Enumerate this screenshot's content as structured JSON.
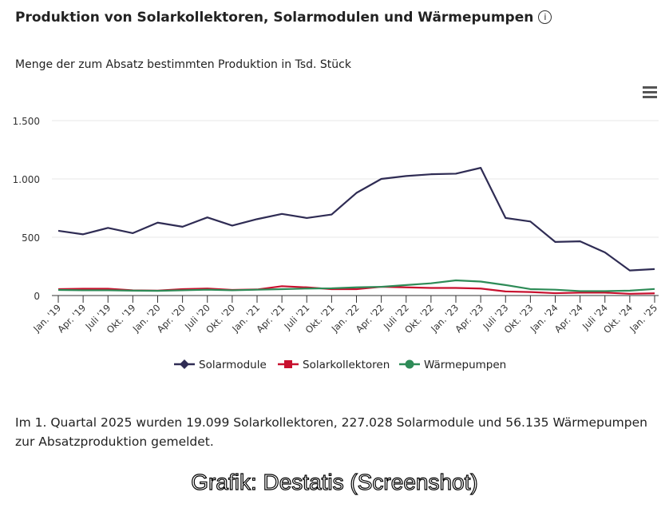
{
  "title": "Produktion von Solarkollektoren, Solarmodulen und Wärmepumpen",
  "info_icon": "info-icon",
  "menu_icon": "hamburger-menu-icon",
  "note": "Im 1. Quartal 2025 wurden 19.099 Solarkollektoren, 227.028 Solarmodule und 56.135 Wärmepumpen zur Absatzproduktion gemeldet.",
  "credit": "Grafik: Destatis (Screenshot)",
  "chart_data": {
    "type": "line",
    "subtitle": "Menge der zum Absatz bestimmten Produktion in Tsd. Stück",
    "categories": [
      "Jan. '19",
      "Apr. '19",
      "Juli '19",
      "Okt. '19",
      "Jan. '20",
      "Apr. '20",
      "Juli '20",
      "Okt. '20",
      "Jan. '21",
      "Apr. '21",
      "Juli '21",
      "Okt. '21",
      "Jan. '22",
      "Apr. '22",
      "Juli '22",
      "Okt. '22",
      "Jan. '23",
      "Apr. '23",
      "Juli '23",
      "Okt. '23",
      "Jan. '24",
      "Apr. '24",
      "Juli '24",
      "Okt. '24",
      "Jan. '25"
    ],
    "ylim": [
      0,
      1500
    ],
    "yticks": [
      0,
      500,
      1000,
      1500
    ],
    "ytick_labels": [
      "0",
      "500",
      "1.000",
      "1.500"
    ],
    "grid": true,
    "legend": "bottom",
    "series": [
      {
        "name": "Solarmodule",
        "color": "#2f2c54",
        "marker": "diamond",
        "values": [
          555,
          525,
          580,
          535,
          625,
          590,
          670,
          600,
          655,
          700,
          665,
          695,
          880,
          1000,
          1025,
          1040,
          1045,
          1095,
          665,
          635,
          460,
          465,
          370,
          215,
          227
        ]
      },
      {
        "name": "Solarkollektoren",
        "color": "#c8102e",
        "marker": "square",
        "values": [
          55,
          58,
          58,
          45,
          42,
          55,
          60,
          48,
          52,
          80,
          70,
          55,
          55,
          75,
          70,
          65,
          65,
          60,
          35,
          30,
          20,
          25,
          25,
          15,
          19
        ]
      },
      {
        "name": "Wärmepumpen",
        "color": "#2e8b57",
        "marker": "circle",
        "values": [
          48,
          45,
          45,
          42,
          40,
          45,
          50,
          45,
          50,
          55,
          60,
          62,
          70,
          75,
          90,
          105,
          130,
          120,
          90,
          55,
          50,
          38,
          38,
          42,
          56
        ]
      }
    ]
  }
}
